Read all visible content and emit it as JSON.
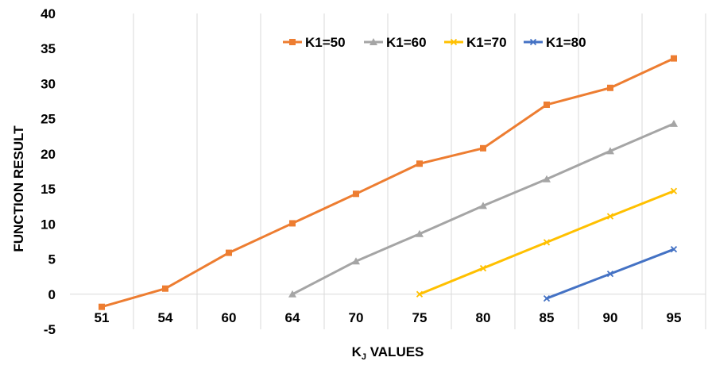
{
  "chart_data": {
    "type": "line",
    "categories": [
      "51",
      "54",
      "60",
      "64",
      "70",
      "75",
      "80",
      "85",
      "90",
      "95"
    ],
    "xlabel_main": "K",
    "xlabel_sub": "J",
    "xlabel_rest": " VALUES",
    "ylabel": "FUNCTION RESULT",
    "ylim": [
      -5,
      40
    ],
    "yticks": [
      -5,
      0,
      5,
      10,
      15,
      20,
      25,
      30,
      35,
      40
    ],
    "grid": {
      "vertical": true,
      "horizontal": false
    },
    "legend_position": "top-right",
    "series": [
      {
        "name": "K1=50",
        "color": "#ED7D31",
        "marker": "square",
        "values": [
          -1.8,
          0.8,
          5.9,
          10.1,
          14.3,
          18.6,
          20.8,
          27.0,
          29.4,
          33.6
        ]
      },
      {
        "name": "K1=60",
        "color": "#A5A5A5",
        "marker": "triangle",
        "values": [
          null,
          null,
          null,
          0.0,
          4.7,
          8.6,
          12.6,
          16.4,
          20.4,
          24.3
        ]
      },
      {
        "name": "K1=70",
        "color": "#FFC000",
        "marker": "x",
        "values": [
          null,
          null,
          null,
          null,
          null,
          0.0,
          3.7,
          7.4,
          11.1,
          14.7
        ]
      },
      {
        "name": "K1=80",
        "color": "#4472C4",
        "marker": "x",
        "values": [
          null,
          null,
          null,
          null,
          null,
          null,
          null,
          -0.6,
          2.9,
          6.4
        ]
      }
    ]
  }
}
